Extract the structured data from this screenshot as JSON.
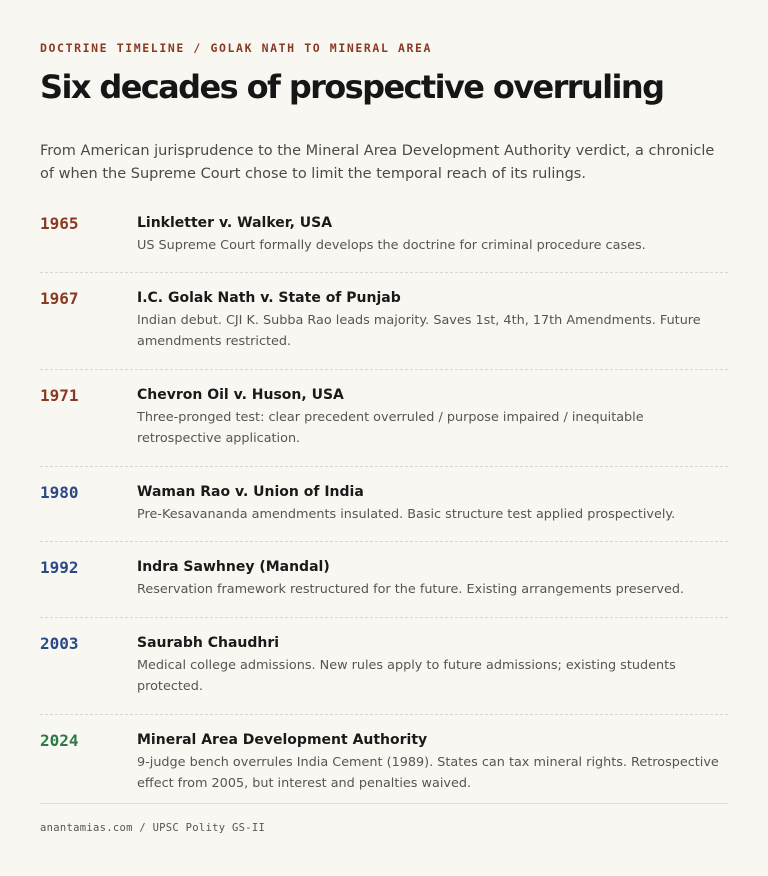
{
  "header": {
    "eyebrow": "DOCTRINE TIMELINE / GOLAK NATH TO MINERAL AREA",
    "title": "Six decades of prospective overruling",
    "intro": "From American jurisprudence to the Mineral Area Development Authority verdict, a chronicle of when the Supreme Court chose to limit the temporal reach of its rulings."
  },
  "colors": {
    "era_us_india_early": "#8a3a22",
    "era_india_mid": "#2b4a86",
    "era_recent": "#2e7a47"
  },
  "timeline": [
    {
      "year": "1965",
      "case": "Linkletter v. Walker, USA",
      "note": "US Supreme Court formally develops the doctrine for criminal procedure cases.",
      "color": "#8a3a22"
    },
    {
      "year": "1967",
      "case": "I.C. Golak Nath v. State of Punjab",
      "note": "Indian debut. CJI K. Subba Rao leads majority. Saves 1st, 4th, 17th Amendments. Future amendments restricted.",
      "color": "#8a3a22"
    },
    {
      "year": "1971",
      "case": "Chevron Oil v. Huson, USA",
      "note": "Three-pronged test: clear precedent overruled / purpose impaired / inequitable retrospective application.",
      "color": "#8a3a22"
    },
    {
      "year": "1980",
      "case": "Waman Rao v. Union of India",
      "note": "Pre-Kesavananda amendments insulated. Basic structure test applied prospectively.",
      "color": "#2b4a86"
    },
    {
      "year": "1992",
      "case": "Indra Sawhney (Mandal)",
      "note": "Reservation framework restructured for the future. Existing arrangements preserved.",
      "color": "#2b4a86"
    },
    {
      "year": "2003",
      "case": "Saurabh Chaudhri",
      "note": "Medical college admissions. New rules apply to future admissions; existing students protected.",
      "color": "#2b4a86"
    },
    {
      "year": "2024",
      "case": "Mineral Area Development Authority",
      "note": "9-judge bench overrules India Cement (1989). States can tax mineral rights. Retrospective effect from 2005, but interest and penalties waived.",
      "color": "#2e7a47"
    }
  ],
  "footer": {
    "source": "anantamias.com / UPSC Polity GS-II"
  }
}
